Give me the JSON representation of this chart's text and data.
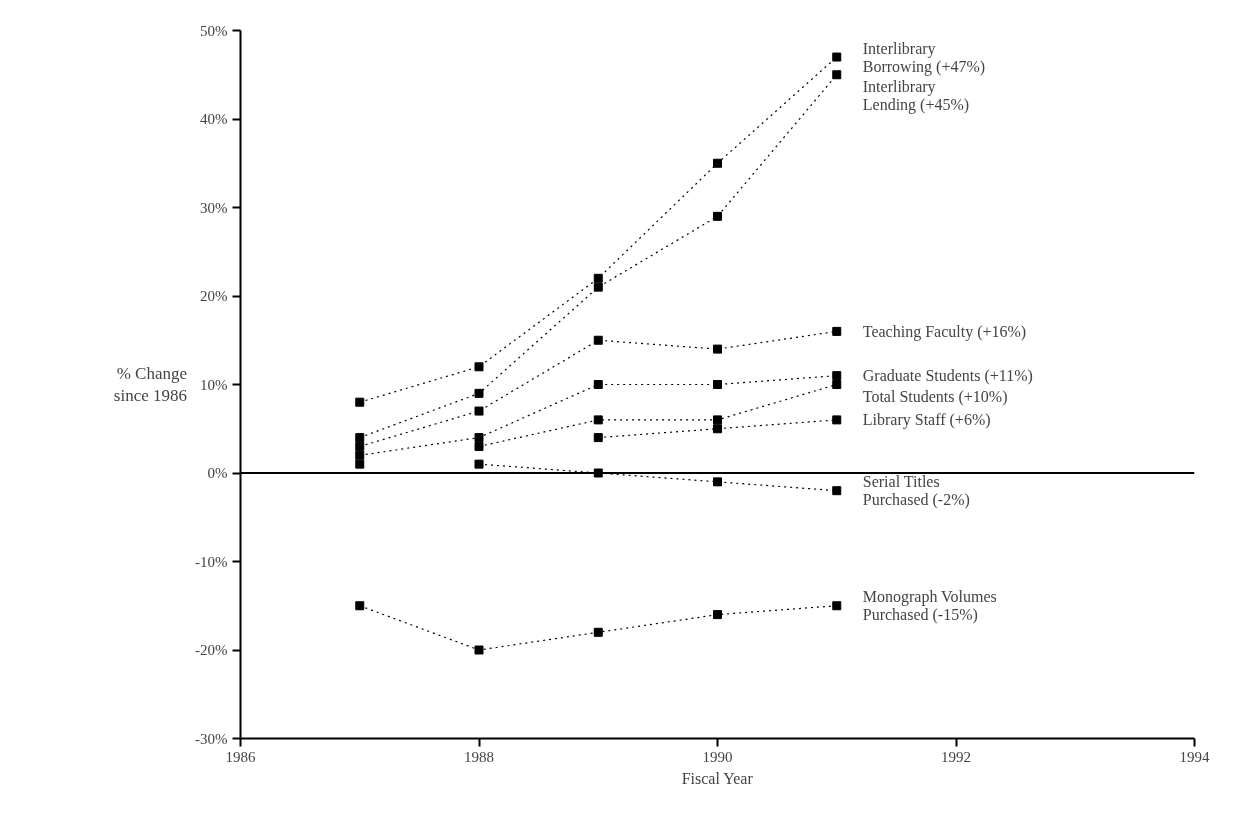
{
  "chart_data": {
    "type": "line",
    "xlabel": "Fiscal Year",
    "ylabel": "% Change since 1986",
    "x": [
      1987,
      1988,
      1989,
      1990,
      1991
    ],
    "series": [
      {
        "name": "Interlibrary Borrowing (+47%)",
        "color": "#000000",
        "values": [
          8,
          12,
          22,
          35,
          47
        ]
      },
      {
        "name": "Interlibrary Lending (+45%)",
        "color": "#000000",
        "values": [
          4,
          9,
          21,
          29,
          45
        ]
      },
      {
        "name": "Teaching Faculty (+16%)",
        "color": "#000000",
        "values": [
          3,
          7,
          15,
          14,
          16
        ]
      },
      {
        "name": "Graduate Students (+11%)",
        "color": "#000000",
        "values": [
          2,
          4,
          10,
          10,
          11
        ]
      },
      {
        "name": "Total Students (+10%)",
        "color": "#000000",
        "values": [
          null,
          3,
          6,
          6,
          10
        ]
      },
      {
        "name": "Library Staff (+6%)",
        "color": "#000000",
        "values": [
          1,
          null,
          4,
          5,
          6
        ]
      },
      {
        "name": "Serial Titles Purchased (-2%)",
        "color": "#000000",
        "values": [
          null,
          1,
          0,
          -1,
          -2
        ]
      },
      {
        "name": "Monograph Volumes Purchased (-15%)",
        "color": "#000000",
        "values": [
          -15,
          -20,
          -18,
          -16,
          -15
        ]
      }
    ],
    "xlim": [
      1986,
      1994
    ],
    "xticks": [
      1986,
      1988,
      1990,
      1992,
      1994
    ],
    "ylim": [
      -30,
      50
    ],
    "yticks": [
      {
        "value": -30,
        "label": "-30%"
      },
      {
        "value": -20,
        "label": "-20%"
      },
      {
        "value": -10,
        "label": "-10%"
      },
      {
        "value": 0,
        "label": "0%"
      },
      {
        "value": 10,
        "label": "10%"
      },
      {
        "value": 20,
        "label": "20%"
      },
      {
        "value": 30,
        "label": "30%"
      },
      {
        "value": 40,
        "label": "40%"
      },
      {
        "value": 50,
        "label": "50%"
      }
    ],
    "ref_lines": [
      {
        "axis": "y",
        "value": 0,
        "color": "#000000"
      }
    ],
    "marker": "square",
    "line_style": "dotted",
    "grid": false
  }
}
